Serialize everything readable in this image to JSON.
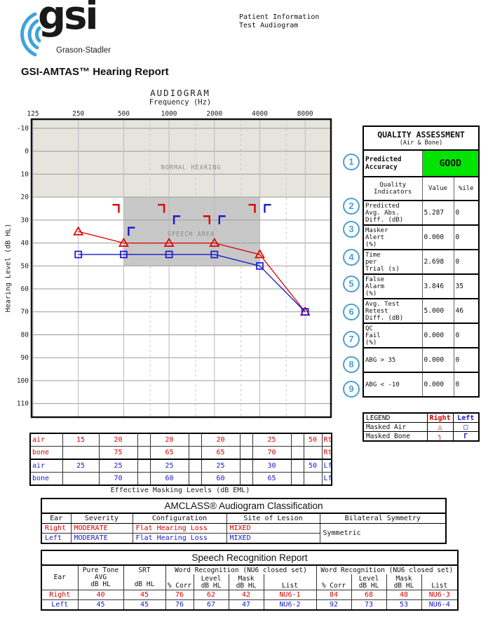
{
  "header": {
    "logo_text": "gsi",
    "logo_subtext": "Grason-Stadler",
    "patient_line1": "Patient Information",
    "patient_line2": "Test Audiogram",
    "report_title": "GSI-AMTAS™ Hearing Report"
  },
  "audiogram": {
    "title": "AUDIOGRAM",
    "xlabel": "Frequency (Hz)",
    "ylabel": "Hearing Level (dB HL)"
  },
  "chart_data": {
    "type": "line",
    "title": "AUDIOGRAM",
    "xlabel": "Frequency (Hz)",
    "ylabel": "Hearing Level (dB HL)",
    "x_scale": "log2-octaves",
    "x_ticks": [
      125,
      250,
      500,
      1000,
      2000,
      4000,
      8000
    ],
    "x_minor_dashed": [
      750,
      1500,
      3000,
      6000
    ],
    "y_ticks": [
      -10,
      0,
      10,
      20,
      30,
      40,
      50,
      60,
      70,
      80,
      90,
      100,
      110
    ],
    "y_inverted": true,
    "ylim": [
      -10,
      110
    ],
    "regions": [
      {
        "label": "NORMAL HEARING",
        "freq_range": [
          125,
          16000
        ],
        "db_range": [
          -15,
          20
        ],
        "label_pos": [
          1400,
          7
        ]
      },
      {
        "label": "SPEECH AREA",
        "freq_range": [
          500,
          4000
        ],
        "db_range": [
          20,
          50
        ],
        "label_pos": [
          1400,
          36
        ]
      }
    ],
    "series": [
      {
        "name": "Masked Air Right",
        "ear": "right",
        "symbol": "triangle",
        "connect": true,
        "points": [
          [
            250,
            35
          ],
          [
            500,
            40
          ],
          [
            1000,
            40
          ],
          [
            2000,
            40
          ],
          [
            4000,
            45
          ],
          [
            8000,
            70
          ]
        ]
      },
      {
        "name": "Masked Air Left",
        "ear": "left",
        "symbol": "square",
        "connect": true,
        "points": [
          [
            250,
            45
          ],
          [
            500,
            45
          ],
          [
            1000,
            45
          ],
          [
            2000,
            45
          ],
          [
            4000,
            50
          ],
          [
            8000,
            70
          ]
        ]
      },
      {
        "name": "Masked Bone Right",
        "ear": "right",
        "symbol": "bone-right",
        "connect": false,
        "points": [
          [
            500,
            25
          ],
          [
            1000,
            25
          ],
          [
            2000,
            30
          ],
          [
            4000,
            25
          ]
        ]
      },
      {
        "name": "Masked Bone Left",
        "ear": "left",
        "symbol": "bone-left",
        "connect": false,
        "points": [
          [
            500,
            35
          ],
          [
            1000,
            30
          ],
          [
            2000,
            30
          ],
          [
            4000,
            25
          ]
        ]
      }
    ]
  },
  "quality_assessment": {
    "title": "QUALITY ASSESSMENT",
    "subtitle": "(Air & Bone)",
    "predicted_accuracy": {
      "circle": "1",
      "label": "Predicted\nAccuracy",
      "value": "GOOD"
    },
    "columns": [
      "Quality\nIndicators",
      "Value",
      "%ile"
    ],
    "rows": [
      {
        "circle": "2",
        "label": [
          "Predicted",
          "Avg. Abs.",
          "Diff. (dB)"
        ],
        "value": "5.287",
        "pctile": "0"
      },
      {
        "circle": "3",
        "label": [
          "Masker",
          "Alert",
          "(%)"
        ],
        "value": "0.000",
        "pctile": "0"
      },
      {
        "circle": "4",
        "label": [
          "Time",
          "per",
          "Trial (s)"
        ],
        "value": "2.698",
        "pctile": "0"
      },
      {
        "circle": "5",
        "label": [
          "False",
          "Alarm",
          "(%)"
        ],
        "value": "3.846",
        "pctile": "35"
      },
      {
        "circle": "6",
        "label": [
          "Avg. Test",
          "Retest",
          "Diff. (dB)"
        ],
        "value": "5.000",
        "pctile": "46"
      },
      {
        "circle": "7",
        "label": [
          "QC",
          "Fail",
          "(%)"
        ],
        "value": "0.000",
        "pctile": "0"
      },
      {
        "circle": "8",
        "label": [
          "ABG > 35"
        ],
        "value": "0.000",
        "pctile": "0"
      },
      {
        "circle": "9",
        "label": [
          "ABG < -10"
        ],
        "value": "0.000",
        "pctile": "0"
      }
    ]
  },
  "legend": {
    "title": "LEGEND",
    "col_right": "Right",
    "col_left": "Left",
    "rows": [
      {
        "label": "Masked Air",
        "right_symbol": "△",
        "left_symbol": "□"
      },
      {
        "label": "Masked Bone",
        "right_symbol": "┐",
        "left_symbol": "Γ"
      }
    ]
  },
  "eml": {
    "caption": "Effective Masking Levels  (dB EML)",
    "freq_columns": [
      250,
      500,
      1000,
      2000,
      4000,
      8000
    ],
    "rows": [
      {
        "type": "air",
        "ear": "Rt",
        "side": "right",
        "values": [
          "15",
          "20",
          "",
          "20",
          "",
          "20",
          "",
          "25",
          "",
          "50"
        ]
      },
      {
        "type": "bone",
        "ear": "Rt",
        "side": "right",
        "values": [
          "",
          "75",
          "",
          "65",
          "",
          "65",
          "",
          "70",
          "",
          ""
        ]
      },
      {
        "type": "air",
        "ear": "Lf",
        "side": "left",
        "values": [
          "25",
          "25",
          "",
          "25",
          "",
          "25",
          "",
          "30",
          "",
          "50"
        ]
      },
      {
        "type": "bone",
        "ear": "Lf",
        "side": "left",
        "values": [
          "",
          "70",
          "",
          "60",
          "",
          "60",
          "",
          "65",
          "",
          ""
        ]
      }
    ]
  },
  "amclass": {
    "title": "AMCLASS®  Audiogram Classification",
    "headers": [
      "Ear",
      "Severity",
      "Configuration",
      "Site of Lesion",
      "Bilateral Symmetry"
    ],
    "rows": [
      {
        "ear": "Right",
        "side": "right",
        "severity": "MODERATE",
        "configuration": "Flat Hearing Loss",
        "site_of_lesion": "MIXED"
      },
      {
        "ear": "Left",
        "side": "left",
        "severity": "MODERATE",
        "configuration": "Flat Hearing Loss",
        "site_of_lesion": "MIXED"
      }
    ],
    "bilateral_symmetry": "Symmetric"
  },
  "speech": {
    "title": "Speech Recognition Report",
    "headers": {
      "ear": "Ear",
      "pta": [
        "Pure Tone",
        "AVG",
        "dB HL"
      ],
      "srt": [
        "SRT",
        "",
        "dB HL"
      ],
      "wr_group": "Word Recognition (NU6 closed set)",
      "subcols": [
        [
          "% Corr"
        ],
        [
          "Level",
          "dB HL"
        ],
        [
          "Mask",
          "dB HL"
        ],
        [
          "List"
        ]
      ]
    },
    "rows": [
      {
        "ear": "Right",
        "side": "right",
        "pta": "40",
        "srt": "45",
        "wr1": [
          "76",
          "62",
          "42",
          "NU6-1"
        ],
        "wr2": [
          "84",
          "68",
          "48",
          "NU6-3"
        ]
      },
      {
        "ear": "Left",
        "side": "left",
        "pta": "45",
        "srt": "45",
        "wr1": [
          "76",
          "67",
          "47",
          "NU6-2"
        ],
        "wr2": [
          "92",
          "73",
          "53",
          "NU6-4"
        ]
      }
    ]
  },
  "colors": {
    "right_ear": "#dd0000",
    "left_ear": "#1818d0",
    "good_green": "#00e400",
    "circle_blue": "#4a9fd6",
    "logo_blue": "#3da4db",
    "normal_region": "#e5e5de",
    "speech_region": "#c8c8c8"
  }
}
